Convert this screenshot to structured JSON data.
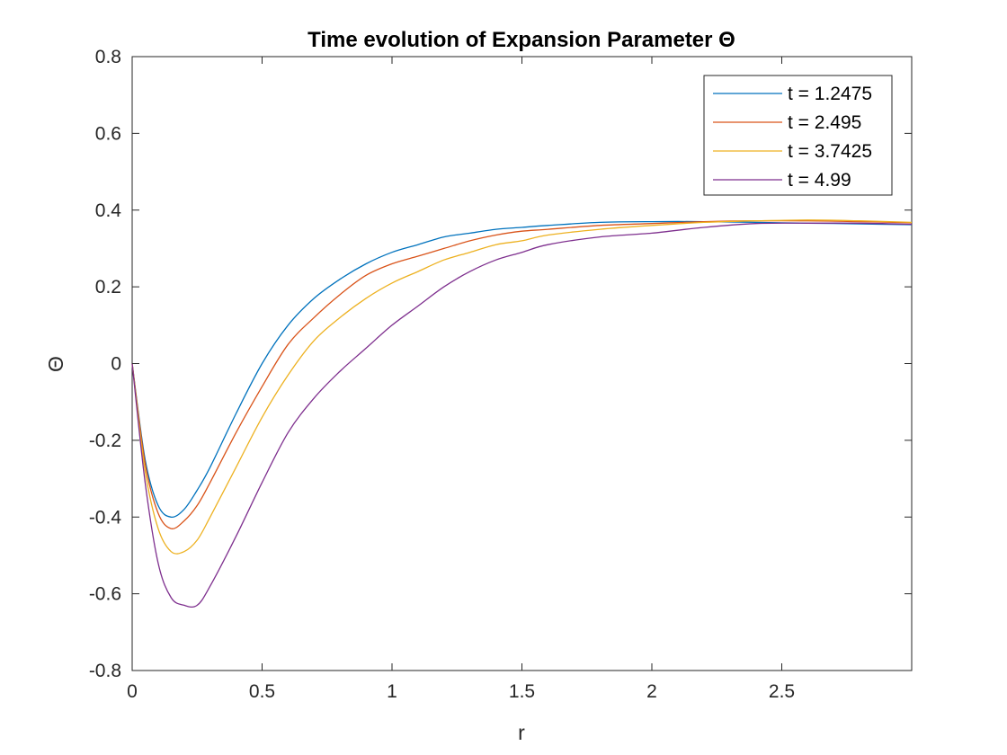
{
  "chart_data": {
    "type": "line",
    "title": "Time evolution of Expansion Parameter Θ",
    "xlabel": "r",
    "ylabel": "Θ",
    "xlim": [
      0,
      3
    ],
    "ylim": [
      -0.8,
      0.8
    ],
    "x_ticks": [
      "0",
      "0.5",
      "1",
      "1.5",
      "2",
      "2.5"
    ],
    "y_ticks": [
      "-0.8",
      "-0.6",
      "-0.4",
      "-0.2",
      "0",
      "0.2",
      "0.4",
      "0.6",
      "0.8"
    ],
    "grid": false,
    "legend": "top-right",
    "x": [
      0,
      0.05,
      0.1,
      0.15,
      0.2,
      0.25,
      0.3,
      0.4,
      0.5,
      0.6,
      0.7,
      0.8,
      0.9,
      1.0,
      1.1,
      1.2,
      1.3,
      1.4,
      1.5,
      1.6,
      1.8,
      2.0,
      2.2,
      2.4,
      2.6,
      2.8,
      3.0
    ],
    "series": [
      {
        "name": "t = 1.2475",
        "color": "#0072BD",
        "values": [
          0.0,
          -0.25,
          -0.37,
          -0.4,
          -0.38,
          -0.33,
          -0.27,
          -0.13,
          0.0,
          0.1,
          0.17,
          0.22,
          0.26,
          0.29,
          0.31,
          0.33,
          0.34,
          0.35,
          0.355,
          0.36,
          0.368,
          0.37,
          0.37,
          0.368,
          0.366,
          0.364,
          0.362
        ]
      },
      {
        "name": "t = 2.495",
        "color": "#D95319",
        "values": [
          0.0,
          -0.26,
          -0.39,
          -0.43,
          -0.41,
          -0.37,
          -0.31,
          -0.18,
          -0.06,
          0.05,
          0.12,
          0.18,
          0.23,
          0.26,
          0.28,
          0.3,
          0.32,
          0.335,
          0.345,
          0.35,
          0.36,
          0.365,
          0.37,
          0.372,
          0.372,
          0.37,
          0.367
        ]
      },
      {
        "name": "t = 3.7425",
        "color": "#EDB120",
        "values": [
          0.0,
          -0.28,
          -0.43,
          -0.49,
          -0.49,
          -0.46,
          -0.4,
          -0.27,
          -0.14,
          -0.03,
          0.06,
          0.12,
          0.17,
          0.21,
          0.24,
          0.27,
          0.29,
          0.31,
          0.32,
          0.335,
          0.35,
          0.36,
          0.368,
          0.372,
          0.374,
          0.372,
          0.368
        ]
      },
      {
        "name": "t = 4.99",
        "color": "#7E2F8E",
        "values": [
          0.0,
          -0.31,
          -0.52,
          -0.61,
          -0.63,
          -0.63,
          -0.58,
          -0.45,
          -0.31,
          -0.18,
          -0.09,
          -0.02,
          0.04,
          0.1,
          0.15,
          0.2,
          0.24,
          0.27,
          0.29,
          0.31,
          0.33,
          0.34,
          0.355,
          0.365,
          0.366,
          0.366,
          0.363
        ]
      }
    ]
  }
}
